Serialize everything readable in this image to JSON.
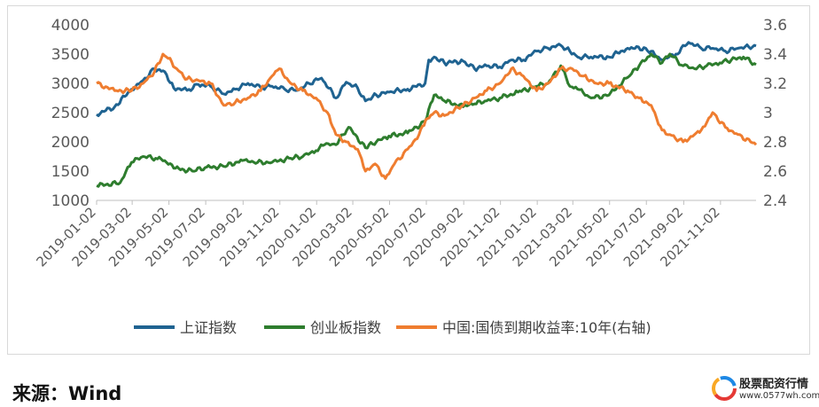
{
  "chart_data": {
    "type": "line",
    "title": "",
    "x_ticks": [
      "2019-01-02",
      "2019-03-02",
      "2019-05-02",
      "2019-07-02",
      "2019-09-02",
      "2019-11-02",
      "2020-01-02",
      "2020-03-02",
      "2020-05-02",
      "2020-07-02",
      "2020-09-02",
      "2020-11-02",
      "2021-01-02",
      "2021-03-02",
      "2021-05-02",
      "2021-07-02",
      "2021-09-02",
      "2021-11-02"
    ],
    "y_left": {
      "ticks": [
        "4000",
        "3500",
        "3000",
        "2500",
        "2000",
        "1500",
        "1000"
      ],
      "ylim": [
        1000,
        4000
      ]
    },
    "y_right": {
      "ticks": [
        "3.6",
        "3.4",
        "3.2",
        "3",
        "2.8",
        "2.6",
        "2.4"
      ],
      "ylim": [
        2.4,
        3.6
      ]
    },
    "grid": false,
    "legend_position": "bottom",
    "series": [
      {
        "name": "上证指数",
        "axis": "left",
        "color": "#1f6391",
        "x": [
          "2019-01-02",
          "2019-02-01",
          "2019-03-01",
          "2019-03-20",
          "2019-04-08",
          "2019-04-25",
          "2019-05-10",
          "2019-06-01",
          "2019-06-20",
          "2019-07-10",
          "2019-08-01",
          "2019-08-20",
          "2019-09-10",
          "2019-10-01",
          "2019-10-20",
          "2019-11-10",
          "2019-12-01",
          "2019-12-20",
          "2020-01-10",
          "2020-02-03",
          "2020-02-20",
          "2020-03-10",
          "2020-03-23",
          "2020-04-10",
          "2020-05-01",
          "2020-06-01",
          "2020-06-30",
          "2020-07-06",
          "2020-07-15",
          "2020-08-01",
          "2020-09-01",
          "2020-09-20",
          "2020-10-10",
          "2020-11-01",
          "2020-11-20",
          "2020-12-10",
          "2021-01-01",
          "2021-01-20",
          "2021-02-10",
          "2021-02-25",
          "2021-03-10",
          "2021-04-01",
          "2021-05-01",
          "2021-06-01",
          "2021-07-01",
          "2021-07-28",
          "2021-08-20",
          "2021-09-10",
          "2021-10-01",
          "2021-10-20",
          "2021-11-10",
          "2021-12-01",
          "2021-12-31"
        ],
        "y": [
          2470,
          2600,
          2900,
          3050,
          3250,
          3200,
          2920,
          2880,
          2980,
          2950,
          2820,
          2900,
          3000,
          2930,
          2950,
          2900,
          2880,
          3000,
          3090,
          2750,
          3020,
          2920,
          2700,
          2800,
          2850,
          2900,
          3000,
          3400,
          3450,
          3350,
          3380,
          3250,
          3300,
          3280,
          3400,
          3400,
          3550,
          3600,
          3650,
          3550,
          3450,
          3450,
          3450,
          3600,
          3600,
          3400,
          3500,
          3700,
          3600,
          3600,
          3550,
          3600,
          3640
        ]
      },
      {
        "name": "创业板指数",
        "axis": "left",
        "color": "#2e7d2e",
        "x": [
          "2019-01-02",
          "2019-02-10",
          "2019-03-01",
          "2019-03-20",
          "2019-04-10",
          "2019-04-25",
          "2019-05-10",
          "2019-06-10",
          "2019-07-01",
          "2019-08-01",
          "2019-09-01",
          "2019-09-20",
          "2019-10-20",
          "2019-11-20",
          "2019-12-10",
          "2020-01-01",
          "2020-01-15",
          "2020-02-03",
          "2020-02-24",
          "2020-03-23",
          "2020-04-10",
          "2020-05-01",
          "2020-06-01",
          "2020-06-30",
          "2020-07-15",
          "2020-08-01",
          "2020-09-01",
          "2020-09-20",
          "2020-10-10",
          "2020-11-01",
          "2020-12-01",
          "2021-01-01",
          "2021-01-20",
          "2021-02-10",
          "2021-02-25",
          "2021-03-10",
          "2021-04-01",
          "2021-05-01",
          "2021-06-01",
          "2021-06-20",
          "2021-07-10",
          "2021-07-28",
          "2021-08-10",
          "2021-09-01",
          "2021-09-20",
          "2021-10-10",
          "2021-11-01",
          "2021-11-20",
          "2021-12-10",
          "2021-12-31"
        ],
        "y": [
          1250,
          1300,
          1650,
          1750,
          1720,
          1680,
          1550,
          1500,
          1560,
          1580,
          1680,
          1650,
          1650,
          1720,
          1750,
          1850,
          1950,
          1950,
          2250,
          1900,
          2000,
          2100,
          2150,
          2350,
          2800,
          2700,
          2600,
          2650,
          2700,
          2750,
          2850,
          2950,
          3000,
          3300,
          2950,
          2900,
          2750,
          2800,
          3100,
          3300,
          3500,
          3350,
          3500,
          3300,
          3250,
          3300,
          3350,
          3400,
          3450,
          3320
        ]
      },
      {
        "name": "中国:国债到期收益率:10年(右轴)",
        "axis": "right",
        "color": "#ef7d30",
        "x": [
          "2019-01-02",
          "2019-02-01",
          "2019-03-01",
          "2019-03-20",
          "2019-04-08",
          "2019-04-22",
          "2019-05-01",
          "2019-05-15",
          "2019-06-01",
          "2019-06-20",
          "2019-07-10",
          "2019-08-01",
          "2019-08-20",
          "2019-09-10",
          "2019-10-01",
          "2019-10-20",
          "2019-11-01",
          "2019-11-20",
          "2019-12-10",
          "2020-01-01",
          "2020-01-20",
          "2020-02-03",
          "2020-02-20",
          "2020-03-10",
          "2020-03-23",
          "2020-04-08",
          "2020-04-25",
          "2020-05-10",
          "2020-06-01",
          "2020-06-20",
          "2020-07-01",
          "2020-07-15",
          "2020-08-01",
          "2020-09-01",
          "2020-09-20",
          "2020-10-10",
          "2020-11-01",
          "2020-11-20",
          "2020-12-10",
          "2021-01-01",
          "2021-01-20",
          "2021-02-10",
          "2021-03-01",
          "2021-03-20",
          "2021-04-10",
          "2021-05-01",
          "2021-06-01",
          "2021-06-20",
          "2021-07-10",
          "2021-07-28",
          "2021-08-10",
          "2021-09-01",
          "2021-09-20",
          "2021-10-01",
          "2021-10-20",
          "2021-11-10",
          "2021-12-01",
          "2021-12-31"
        ],
        "y": [
          3.2,
          3.15,
          3.15,
          3.2,
          3.28,
          3.4,
          3.37,
          3.3,
          3.23,
          3.22,
          3.2,
          3.05,
          3.07,
          3.1,
          3.15,
          3.25,
          3.3,
          3.2,
          3.15,
          3.1,
          3.0,
          2.85,
          2.8,
          2.75,
          2.6,
          2.65,
          2.55,
          2.65,
          2.75,
          2.85,
          2.95,
          3.0,
          2.98,
          3.05,
          3.1,
          3.15,
          3.2,
          3.3,
          3.25,
          3.15,
          3.2,
          3.3,
          3.3,
          3.25,
          3.2,
          3.2,
          3.15,
          3.1,
          3.05,
          2.88,
          2.85,
          2.8,
          2.85,
          2.88,
          3.0,
          2.9,
          2.85,
          2.78
        ]
      }
    ]
  },
  "source": "来源：Wind",
  "watermark": {
    "title": "股票配资行情",
    "url": "www.0577wh.com"
  }
}
